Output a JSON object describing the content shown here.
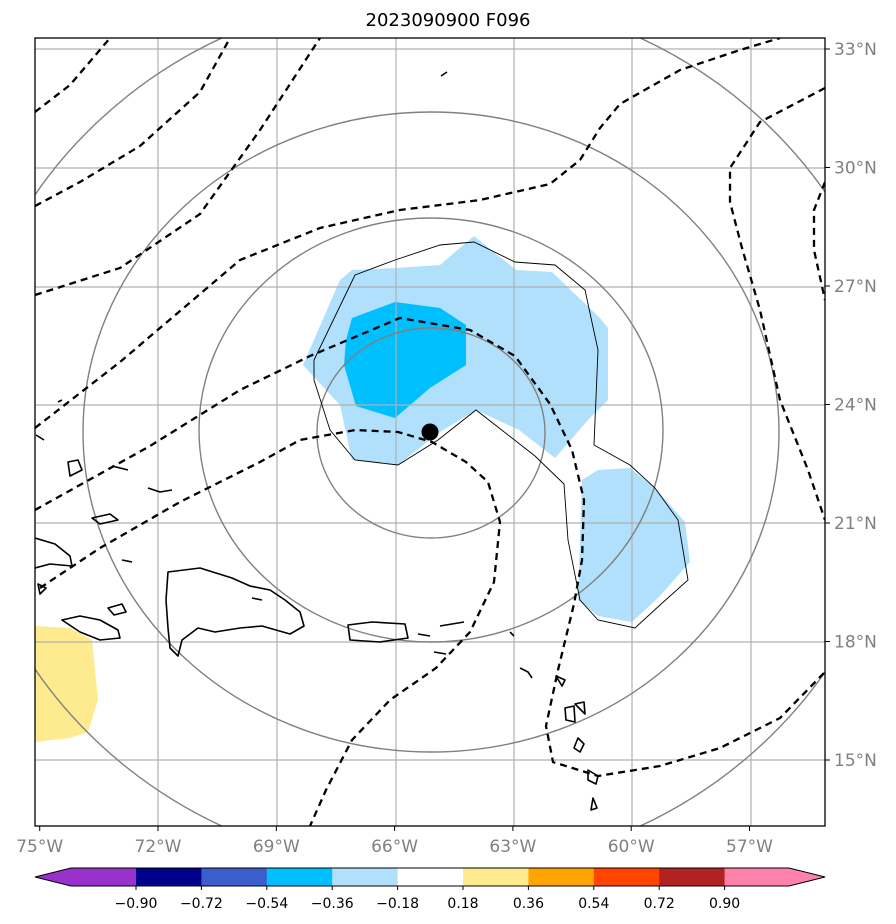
{
  "title": "2023090900 F096",
  "map": {
    "lon_range": [
      -75,
      -55
    ],
    "lat_range": [
      13.5,
      33.3
    ],
    "lon_ticks": [
      {
        "lon": -75,
        "label": "75°W"
      },
      {
        "lon": -72,
        "label": "72°W"
      },
      {
        "lon": -69,
        "label": "69°W"
      },
      {
        "lon": -66,
        "label": "66°W"
      },
      {
        "lon": -63,
        "label": "63°W"
      },
      {
        "lon": -60,
        "label": "60°W"
      },
      {
        "lon": -57,
        "label": "57°W"
      }
    ],
    "lat_ticks": [
      {
        "lat": 33,
        "label": "33°N"
      },
      {
        "lat": 30,
        "label": "30°N"
      },
      {
        "lat": 27,
        "label": "27°N"
      },
      {
        "lat": 24,
        "label": "24°N"
      },
      {
        "lat": 21,
        "label": "21°N"
      },
      {
        "lat": 18,
        "label": "18°N"
      },
      {
        "lat": 15,
        "label": "15°N"
      }
    ],
    "storm_center": {
      "lon": -65.1,
      "lat": 23.2
    },
    "colors": {
      "light_blue": "#b0e0fb",
      "cyan": "#00bfff",
      "yellow": "#ffeb8f",
      "grey_contour": "#808080",
      "grid": "#b0b0b0"
    }
  },
  "colorbar": {
    "colors": [
      "#9932cc",
      "#00008b",
      "#3a5fcd",
      "#00bfff",
      "#b0e0fb",
      "#ffffff",
      "#ffeb8f",
      "#ffa500",
      "#ff4500",
      "#b22222",
      "#ff82ab"
    ],
    "labels": [
      "−0.90",
      "−0.72",
      "−0.54",
      "−0.36",
      "−0.18",
      "0.18",
      "0.36",
      "0.54",
      "0.72",
      "0.90"
    ]
  }
}
